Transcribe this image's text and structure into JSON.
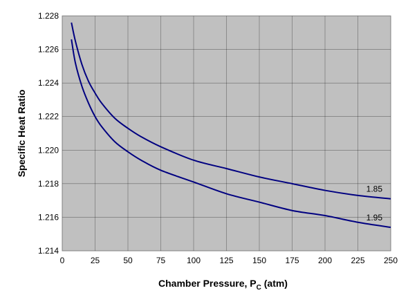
{
  "chart_data": {
    "type": "line",
    "title": "",
    "xlabel_main": "Chamber Pressure, P",
    "xlabel_sub": "C",
    "xlabel_tail": " (atm)",
    "ylabel": "Specific Heat Ratio",
    "xlim": [
      0,
      250
    ],
    "ylim": [
      1.214,
      1.228
    ],
    "xticks": [
      "0",
      "25",
      "50",
      "75",
      "100",
      "125",
      "150",
      "175",
      "200",
      "225",
      "250"
    ],
    "yticks": [
      "1.214",
      "1.216",
      "1.218",
      "1.220",
      "1.222",
      "1.224",
      "1.226",
      "1.228"
    ],
    "grid": true,
    "background": "#c0c0c0",
    "line_color": "#000080",
    "series": [
      {
        "name": "1.85",
        "x": [
          7,
          10,
          15,
          20,
          25,
          30,
          40,
          50,
          60,
          75,
          100,
          125,
          150,
          175,
          200,
          225,
          250
        ],
        "y": [
          1.2276,
          1.2265,
          1.2251,
          1.2241,
          1.2234,
          1.2228,
          1.2219,
          1.2213,
          1.2208,
          1.2202,
          1.2194,
          1.2189,
          1.2184,
          1.218,
          1.2176,
          1.2173,
          1.2171
        ]
      },
      {
        "name": "1.95",
        "x": [
          7,
          10,
          15,
          20,
          25,
          30,
          40,
          50,
          60,
          75,
          100,
          125,
          150,
          175,
          200,
          225,
          250
        ],
        "y": [
          1.2266,
          1.2252,
          1.2238,
          1.2228,
          1.222,
          1.2214,
          1.2205,
          1.2199,
          1.2194,
          1.2188,
          1.2181,
          1.2174,
          1.2169,
          1.2164,
          1.2161,
          1.2157,
          1.2154
        ]
      }
    ]
  }
}
